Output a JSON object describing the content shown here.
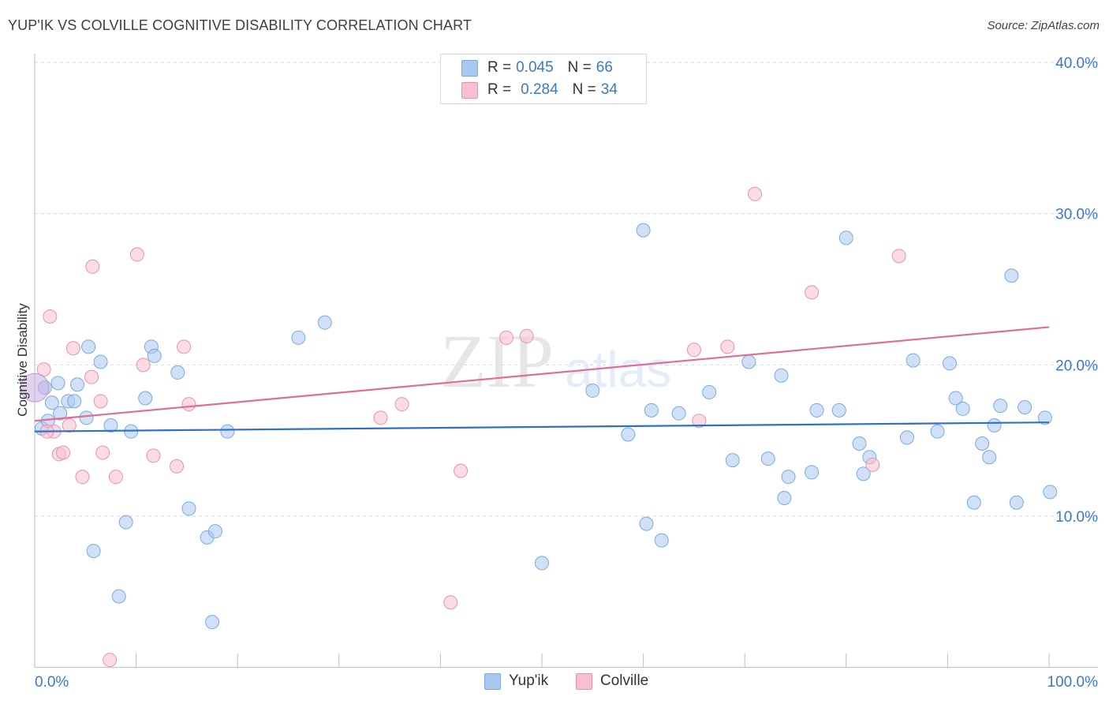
{
  "header": {
    "title": "YUP'IK VS COLVILLE COGNITIVE DISABILITY CORRELATION CHART",
    "source": "Source: ZipAtlas.com"
  },
  "watermark": {
    "zip": "ZIP",
    "atlas": "atlas"
  },
  "legend": {
    "rows": [
      {
        "r_label": "R =",
        "r_value": "0.045",
        "n_label": "N =",
        "n_value": "66",
        "color": "#a9c8f0",
        "border": "#7aaae0"
      },
      {
        "r_label": "R =",
        "r_value": "0.284",
        "n_label": "N =",
        "n_value": "34",
        "color": "#f7bfd0",
        "border": "#e893ae"
      }
    ]
  },
  "bottom_legend": [
    {
      "label": "Yup'ik",
      "color": "#a9c8f0",
      "border": "#7aaae0"
    },
    {
      "label": "Colville",
      "color": "#f7bfd0",
      "border": "#e893ae"
    }
  ],
  "chart_data": {
    "type": "scatter",
    "title": "YUP'IK VS COLVILLE COGNITIVE DISABILITY CORRELATION CHART",
    "xlabel": "",
    "ylabel": "Cognitive Disability",
    "xlim": [
      0,
      100
    ],
    "ylim": [
      0,
      42
    ],
    "x_tick_labels": [
      "0.0%",
      "100.0%"
    ],
    "y_ticks": [
      10,
      20,
      30,
      40
    ],
    "y_tick_labels": [
      "10.0%",
      "20.0%",
      "30.0%",
      "40.0%"
    ],
    "grid": "horizontal dashed",
    "legend_placement": "top-center",
    "colors": {
      "yupik": "#a9c8f0",
      "yupik_line": "#2e6fcb",
      "colville": "#f7bfd0",
      "colville_line": "#e06d96"
    },
    "series": [
      {
        "name": "Yup'ik",
        "trend": {
          "x": [
            0,
            100
          ],
          "y": [
            15.6,
            16.2
          ]
        },
        "points": [
          [
            0.7,
            15.8
          ],
          [
            1.3,
            16.3
          ],
          [
            1.7,
            17.5
          ],
          [
            2.3,
            18.8
          ],
          [
            2.5,
            16.8
          ],
          [
            3.3,
            17.6
          ],
          [
            3.9,
            17.6
          ],
          [
            4.2,
            18.7
          ],
          [
            5.1,
            16.5
          ],
          [
            5.3,
            21.2
          ],
          [
            6.5,
            20.2
          ],
          [
            5.8,
            7.7
          ],
          [
            7.5,
            16.0
          ],
          [
            8.3,
            4.7
          ],
          [
            9.0,
            9.6
          ],
          [
            9.5,
            15.6
          ],
          [
            10.9,
            17.8
          ],
          [
            11.5,
            21.2
          ],
          [
            11.8,
            20.6
          ],
          [
            14.1,
            19.5
          ],
          [
            15.2,
            10.5
          ],
          [
            17.0,
            8.6
          ],
          [
            17.5,
            3.0
          ],
          [
            17.8,
            9.0
          ],
          [
            19.0,
            15.6
          ],
          [
            26.0,
            21.8
          ],
          [
            28.6,
            22.8
          ],
          [
            50.0,
            6.9
          ],
          [
            55.0,
            18.3
          ],
          [
            58.5,
            15.4
          ],
          [
            60.0,
            28.9
          ],
          [
            60.3,
            9.5
          ],
          [
            60.8,
            17.0
          ],
          [
            61.8,
            8.4
          ],
          [
            63.5,
            16.8
          ],
          [
            66.5,
            18.2
          ],
          [
            68.8,
            13.7
          ],
          [
            70.4,
            20.2
          ],
          [
            72.3,
            13.8
          ],
          [
            73.6,
            19.3
          ],
          [
            73.9,
            11.2
          ],
          [
            74.3,
            12.6
          ],
          [
            76.6,
            12.9
          ],
          [
            77.1,
            17.0
          ],
          [
            79.3,
            17.0
          ],
          [
            80.0,
            28.4
          ],
          [
            81.3,
            14.8
          ],
          [
            81.7,
            12.8
          ],
          [
            82.3,
            13.9
          ],
          [
            86.0,
            15.2
          ],
          [
            86.6,
            20.3
          ],
          [
            89.0,
            15.6
          ],
          [
            90.2,
            20.1
          ],
          [
            90.8,
            17.8
          ],
          [
            91.5,
            17.1
          ],
          [
            93.4,
            14.8
          ],
          [
            92.6,
            10.9
          ],
          [
            94.1,
            13.9
          ],
          [
            94.6,
            16.0
          ],
          [
            95.2,
            17.3
          ],
          [
            96.3,
            25.9
          ],
          [
            96.8,
            10.9
          ],
          [
            97.6,
            17.2
          ],
          [
            99.6,
            16.5
          ],
          [
            100.1,
            11.6
          ],
          [
            1.0,
            18.5
          ]
        ]
      },
      {
        "name": "Colville",
        "trend": {
          "x": [
            0,
            100
          ],
          "y": [
            16.3,
            22.5
          ]
        },
        "points": [
          [
            0.9,
            19.7
          ],
          [
            1.5,
            23.2
          ],
          [
            1.9,
            15.6
          ],
          [
            2.4,
            14.1
          ],
          [
            2.8,
            14.2
          ],
          [
            3.4,
            16.0
          ],
          [
            3.8,
            21.1
          ],
          [
            4.7,
            12.6
          ],
          [
            5.6,
            19.2
          ],
          [
            5.7,
            26.5
          ],
          [
            6.5,
            17.6
          ],
          [
            6.7,
            14.2
          ],
          [
            7.4,
            0.5
          ],
          [
            8.0,
            12.6
          ],
          [
            10.1,
            27.3
          ],
          [
            10.7,
            20.0
          ],
          [
            11.7,
            14.0
          ],
          [
            14.0,
            13.3
          ],
          [
            14.7,
            21.2
          ],
          [
            15.2,
            17.4
          ],
          [
            34.1,
            16.5
          ],
          [
            36.2,
            17.4
          ],
          [
            41.0,
            4.3
          ],
          [
            42.0,
            13.0
          ],
          [
            46.5,
            21.8
          ],
          [
            48.5,
            21.9
          ],
          [
            65.0,
            21.0
          ],
          [
            65.5,
            16.3
          ],
          [
            68.3,
            21.2
          ],
          [
            71.0,
            31.3
          ],
          [
            76.6,
            24.8
          ],
          [
            82.6,
            13.4
          ],
          [
            85.2,
            27.2
          ],
          [
            1.2,
            15.6
          ]
        ]
      }
    ]
  }
}
